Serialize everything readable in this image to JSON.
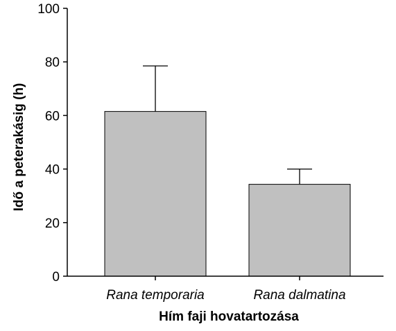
{
  "chart_data": {
    "type": "bar",
    "categories": [
      "Rana temporaria",
      "Rana dalmatina"
    ],
    "values": [
      61.5,
      34.3
    ],
    "error_upper": [
      78.5,
      40.0
    ],
    "xlabel": "Hím faji hovatartozása",
    "ylabel": "Idő a peterakásig (h)",
    "ylim": [
      0,
      100
    ],
    "yticks": [
      0,
      20,
      40,
      60,
      80,
      100
    ],
    "grid": false,
    "bar_color": "#c0c0c0",
    "bar_edge_color": "#000000"
  }
}
